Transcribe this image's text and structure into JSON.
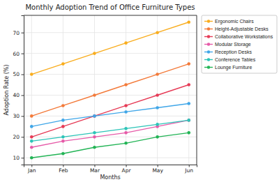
{
  "chart_data": {
    "type": "line",
    "title": "Monthly Adoption Trend of Office Furniture Types",
    "x_label": "Months",
    "y_label": "Adoption Rate (%)",
    "categories": [
      "Jan",
      "Feb",
      "Mar",
      "Apr",
      "May",
      "Jun"
    ],
    "series": [
      {
        "name": "Ergonomic Chairs",
        "color": "#f9ad1e",
        "values": [
          50,
          55,
          60,
          65,
          70,
          75
        ]
      },
      {
        "name": "Height-Adjustable Desks",
        "color": "#f37a3a",
        "values": [
          30,
          35,
          40,
          45,
          50,
          55
        ]
      },
      {
        "name": "Collaborative Workstations",
        "color": "#e63b56",
        "values": [
          20,
          25,
          30,
          35,
          40,
          45
        ]
      },
      {
        "name": "Modular Storage",
        "color": "#e65aa8",
        "values": [
          15,
          18,
          20,
          22,
          25,
          28
        ]
      },
      {
        "name": "Reception Desks",
        "color": "#3fa6e8",
        "values": [
          25,
          28,
          30,
          32,
          34,
          36
        ]
      },
      {
        "name": "Conference Tables",
        "color": "#2cc4b8",
        "values": [
          18,
          20,
          22,
          24,
          26,
          28
        ]
      },
      {
        "name": "Lounge Furniture",
        "color": "#22b455",
        "values": [
          10,
          12,
          15,
          17,
          20,
          22
        ]
      }
    ],
    "ylim": [
      6.75,
      78.25
    ],
    "yticks": [
      10,
      20,
      30,
      40,
      50,
      60,
      70
    ],
    "grid": true,
    "legend": "right",
    "marker": "circle"
  }
}
